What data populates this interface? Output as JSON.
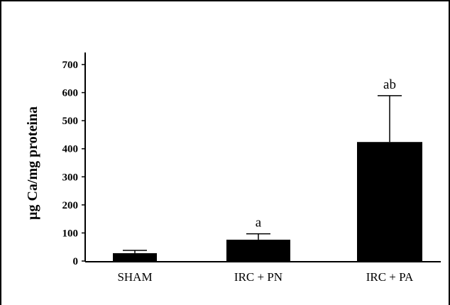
{
  "chart_data": {
    "type": "bar",
    "title": "",
    "xlabel": "",
    "ylabel": "µg Ca/mg proteina",
    "ylim": [
      0,
      700
    ],
    "yticks": [
      0,
      100,
      200,
      300,
      400,
      500,
      600,
      700
    ],
    "categories": [
      "SHAM",
      "IRC + PN",
      "IRC + PA"
    ],
    "values": [
      28,
      76,
      424
    ],
    "error_upper": [
      38,
      97,
      589
    ],
    "annotations": [
      "",
      "a",
      "ab"
    ],
    "bar_color": "#000000",
    "grid": false
  }
}
